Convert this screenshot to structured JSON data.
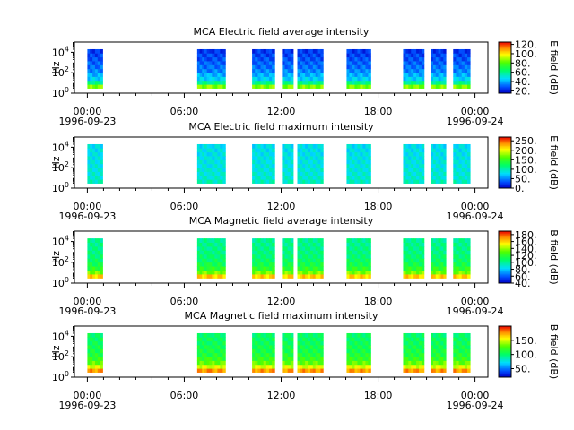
{
  "chart_data": [
    {
      "type": "heatmap",
      "title": "MCA  Electric field average intensity",
      "ylabel": "Hz",
      "colorbar_label": "E field (dB)",
      "colorbar_range": [
        15,
        125
      ],
      "colorbar_ticks": [
        "120.",
        "100.",
        "80.",
        "60.",
        "40.",
        "20."
      ],
      "colorbar_tick_values": [
        120,
        100,
        80,
        60,
        40,
        20
      ],
      "spectral_profile": [
        85,
        60,
        45,
        40,
        35,
        32,
        30,
        28,
        26,
        24
      ]
    },
    {
      "type": "heatmap",
      "title": "MCA  Electric field maximum intensity",
      "ylabel": "Hz",
      "colorbar_label": "E field (dB)",
      "colorbar_range": [
        0,
        270
      ],
      "colorbar_ticks": [
        "250.",
        "200.",
        "150.",
        "100.",
        "50.",
        "0."
      ],
      "colorbar_tick_values": [
        250,
        200,
        150,
        100,
        50,
        0
      ],
      "spectral_profile": [
        95,
        90,
        88,
        86,
        85,
        84,
        83,
        82,
        81,
        80
      ]
    },
    {
      "type": "heatmap",
      "title": "MCA  Magnetic field average intensity",
      "ylabel": "Hz",
      "colorbar_label": "B field (dB)",
      "colorbar_range": [
        40,
        190
      ],
      "colorbar_ticks": [
        "180.",
        "160.",
        "140.",
        "120.",
        "100.",
        "80.",
        "60.",
        "40."
      ],
      "colorbar_tick_values": [
        180,
        160,
        140,
        120,
        100,
        80,
        60,
        40
      ],
      "spectral_profile": [
        160,
        135,
        120,
        112,
        108,
        105,
        103,
        102,
        101,
        100
      ]
    },
    {
      "type": "heatmap",
      "title": "MCA  Magnetic field maximum intensity",
      "ylabel": "Hz",
      "colorbar_label": "B field (dB)",
      "colorbar_range": [
        20,
        200
      ],
      "colorbar_ticks": [
        "150.",
        "100.",
        "50."
      ],
      "colorbar_tick_values": [
        150,
        100,
        50
      ],
      "spectral_profile": [
        175,
        150,
        130,
        118,
        112,
        108,
        106,
        104,
        102,
        100
      ]
    }
  ],
  "x_axis": {
    "range_hours": [
      -0.8,
      24.8
    ],
    "ticks": [
      {
        "hour": 0,
        "label": "00:00",
        "date": "1996-09-23"
      },
      {
        "hour": 6,
        "label": "06:00",
        "date": ""
      },
      {
        "hour": 12,
        "label": "12:00",
        "date": ""
      },
      {
        "hour": 18,
        "label": "18:00",
        "date": ""
      },
      {
        "hour": 24,
        "label": "00:00",
        "date": "1996-09-24"
      }
    ],
    "minor_tick_hours": [
      1,
      2,
      3,
      4,
      5,
      7,
      8,
      9,
      10,
      11,
      13,
      14,
      15,
      16,
      17,
      19,
      20,
      21,
      22,
      23
    ]
  },
  "y_axis": {
    "scale": "log",
    "range": [
      1,
      100000
    ],
    "ticks": [
      {
        "value": 1,
        "base": "10",
        "exp": "0"
      },
      {
        "value": 100,
        "base": "10",
        "exp": "2"
      },
      {
        "value": 10000,
        "base": "10",
        "exp": "4"
      }
    ],
    "data_top": 20000,
    "data_bottom": 3
  },
  "data_intervals_hours": [
    [
      0.0,
      0.95
    ],
    [
      6.8,
      7.55
    ],
    [
      7.55,
      8.55
    ],
    [
      10.2,
      11.6
    ],
    [
      12.05,
      12.75
    ],
    [
      13.0,
      14.6
    ],
    [
      16.05,
      17.55
    ],
    [
      19.55,
      20.85
    ],
    [
      21.25,
      22.2
    ],
    [
      22.65,
      23.7
    ]
  ]
}
